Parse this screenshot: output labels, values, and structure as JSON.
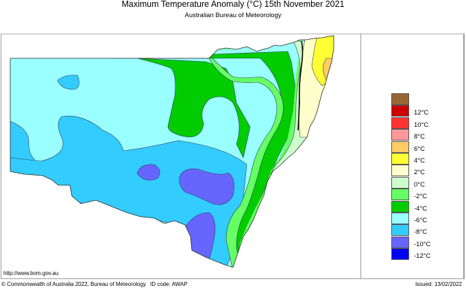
{
  "header": {
    "title": "Maximum Temperature Anomaly (°C)  15th November 2021",
    "subtitle": "Australian Bureau of Meteorology"
  },
  "map": {
    "region": "New South Wales",
    "variable": "Maximum Temperature Anomaly",
    "units": "°C",
    "date": "15th November 2021"
  },
  "legend": {
    "items": [
      {
        "color": "#996633",
        "label": ""
      },
      {
        "color": "#cc0000",
        "label": "12°C"
      },
      {
        "color": "#ff3333",
        "label": "10°C"
      },
      {
        "color": "#ff9999",
        "label": "8°C"
      },
      {
        "color": "#ffcc66",
        "label": "6°C"
      },
      {
        "color": "#ffff33",
        "label": "4°C"
      },
      {
        "color": "#ffffcc",
        "label": "2°C"
      },
      {
        "color": "#ccffcc",
        "label": "0°C"
      },
      {
        "color": "#66ff66",
        "label": "-2°C"
      },
      {
        "color": "#00cc00",
        "label": "-4°C"
      },
      {
        "color": "#99ffff",
        "label": "-6°C"
      },
      {
        "color": "#33ccff",
        "label": "-8°C"
      },
      {
        "color": "#6666ff",
        "label": "-10°C"
      },
      {
        "color": "#0000ff",
        "label": "-12°C"
      }
    ]
  },
  "footer": {
    "url": "http://www.bom.gov.au",
    "copyright": "© Commonwealth of Australia 2022, Bureau of Meteorology",
    "id_code": "ID code: AWAP",
    "issued": "Issued: 13/02/2022"
  }
}
